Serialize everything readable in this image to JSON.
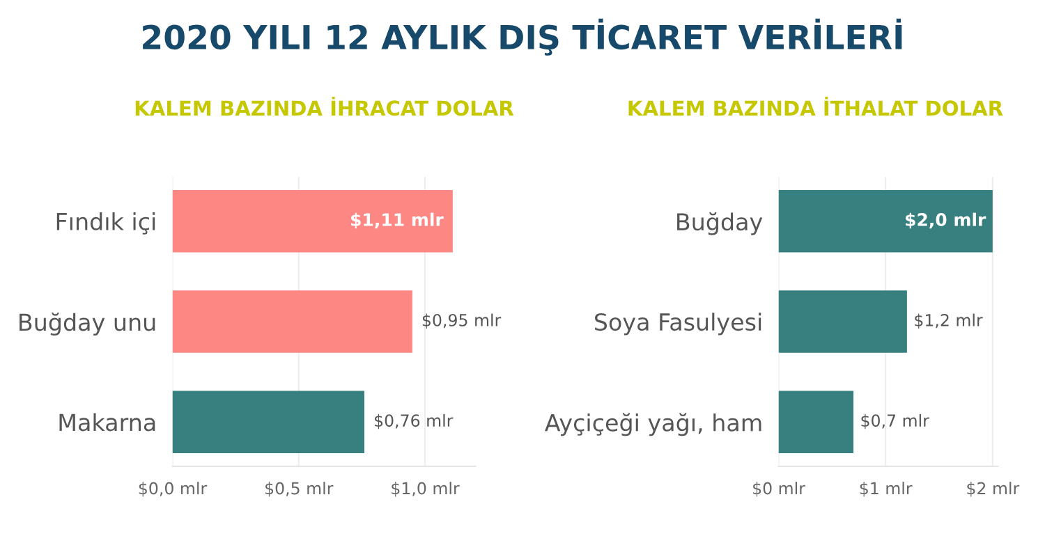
{
  "chart_data": [
    {
      "type": "bar",
      "orientation": "horizontal",
      "title": "KALEM BAZINDA İHRACAT DOLAR",
      "annotations": [
        "2020 YILI 12 AYLIK DIŞ TİCARET VERİLERİ"
      ],
      "categories": [
        "Fındık içi",
        "Buğday unu",
        "Makarna"
      ],
      "values": [
        1.11,
        0.95,
        0.76
      ],
      "colors": [
        "#fd8782",
        "#fd8782",
        "#38807f"
      ],
      "value_labels": [
        "$1,11 mlr",
        "$0,95 mlr",
        "$0,76 mlr"
      ],
      "xlim": [
        0,
        1.2
      ],
      "xticks": [
        {
          "value": 0,
          "label": "$0,0 mlr"
        },
        {
          "value": 0.5,
          "label": "$0,5 mlr"
        },
        {
          "value": 1.0,
          "label": "$1,0 mlr"
        }
      ],
      "grid": "x"
    },
    {
      "type": "bar",
      "orientation": "horizontal",
      "title": "KALEM BAZINDA İTHALAT DOLAR",
      "categories": [
        "Buğday",
        "Soya Fasulyesi",
        "Ayçiçeği yağı, ham"
      ],
      "values": [
        2.0,
        1.2,
        0.7
      ],
      "colors": [
        "#38807f",
        "#38807f",
        "#38807f"
      ],
      "value_labels": [
        "$2,0 mlr",
        "$1,2 mlr",
        "$0,7 mlr"
      ],
      "xlim": [
        0,
        2.05
      ],
      "xticks": [
        {
          "value": 0,
          "label": "$0 mlr"
        },
        {
          "value": 1,
          "label": "$1 mlr"
        },
        {
          "value": 2,
          "label": "$2 mlr"
        }
      ],
      "grid": "x"
    }
  ]
}
